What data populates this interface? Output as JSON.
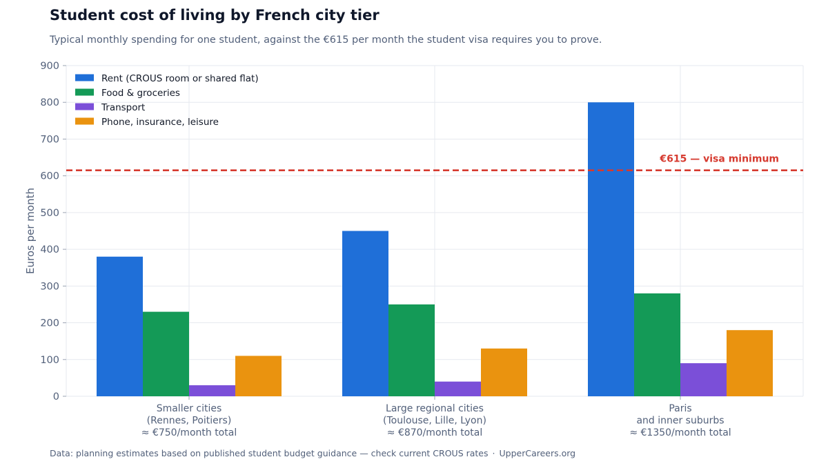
{
  "title": "Student cost of living by French city tier",
  "subtitle": "Typical monthly spending for one student, against the €615 per month the student visa requires you to prove.",
  "footer": {
    "source": "Data: planning estimates based on published student budget guidance — check current CROUS rates",
    "separator": "·",
    "brand": "UpperCareers.org"
  },
  "chart_data": {
    "type": "bar",
    "title": "Student cost of living by French city tier",
    "subtitle": "Typical monthly spending for one student, against the €615 per month the student visa requires you to prove.",
    "xlabel": "",
    "ylabel": "Euros per month",
    "ylim": [
      0,
      900
    ],
    "yticks": [
      0,
      100,
      200,
      300,
      400,
      500,
      600,
      700,
      800,
      900
    ],
    "grid": true,
    "legend_position": "top-left",
    "categories": [
      [
        "Smaller cities",
        "(Rennes, Poitiers)",
        "≈ €750/month total"
      ],
      [
        "Large regional cities",
        "(Toulouse, Lille, Lyon)",
        "≈ €870/month total"
      ],
      [
        "Paris",
        "and inner suburbs",
        "≈ €1350/month total"
      ]
    ],
    "series": [
      {
        "name": "Rent (CROUS room or shared flat)",
        "values": [
          380,
          450,
          800
        ],
        "color": "#1f6fd8"
      },
      {
        "name": "Food & groceries",
        "values": [
          230,
          250,
          280
        ],
        "color": "#149a57"
      },
      {
        "name": "Transport",
        "values": [
          30,
          40,
          90
        ],
        "color": "#7b4fd8"
      },
      {
        "name": "Phone, insurance, leisure",
        "values": [
          110,
          130,
          180
        ],
        "color": "#ea930f"
      }
    ],
    "reference_line": {
      "value": 615,
      "label": "€615 — visa minimum",
      "color": "#d63a2f",
      "style": "dashed"
    }
  }
}
